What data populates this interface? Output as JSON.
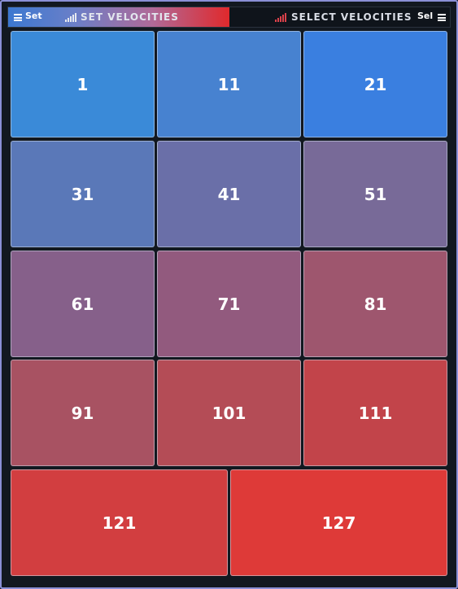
{
  "header": {
    "set_short": "Set",
    "set_title": "SET VELOCITIES",
    "select_title": "SELECT VELOCITIES",
    "select_short": "Sel"
  },
  "pads": [
    {
      "label": "1",
      "color": "#3a8ad8"
    },
    {
      "label": "11",
      "color": "#4782d0"
    },
    {
      "label": "21",
      "color": "#3a7fe0"
    },
    {
      "label": "31",
      "color": "#5a78b8"
    },
    {
      "label": "41",
      "color": "#6a6fa8"
    },
    {
      "label": "51",
      "color": "#786a98"
    },
    {
      "label": "61",
      "color": "#86608a"
    },
    {
      "label": "71",
      "color": "#925a7e"
    },
    {
      "label": "81",
      "color": "#9e566e"
    },
    {
      "label": "91",
      "color": "#a85262"
    },
    {
      "label": "101",
      "color": "#b44c56"
    },
    {
      "label": "111",
      "color": "#c2444a"
    },
    {
      "label": "121",
      "color": "#d23e40"
    },
    {
      "label": "127",
      "color": "#de3a38"
    }
  ]
}
